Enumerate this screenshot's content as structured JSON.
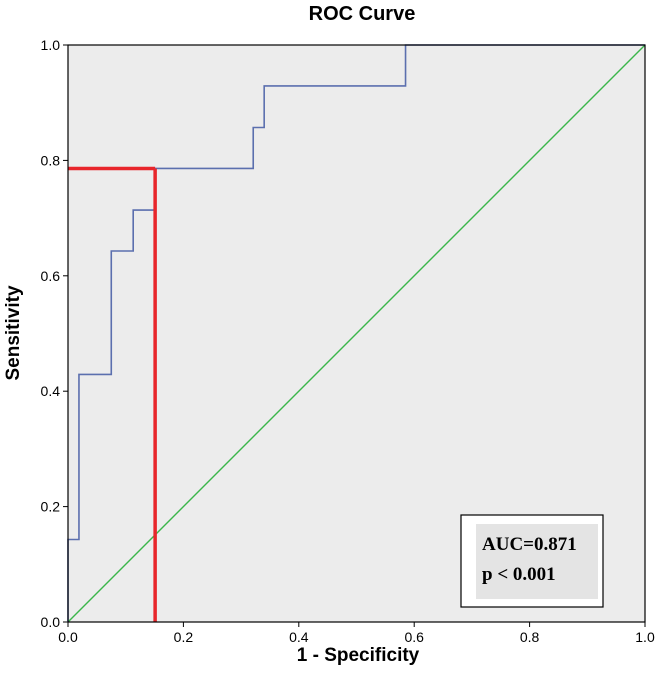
{
  "chart_data": {
    "type": "line",
    "title": "ROC Curve",
    "xlabel": "1 - Specificity",
    "ylabel": "Sensitivity",
    "xlim": [
      0,
      1
    ],
    "ylim": [
      0,
      1
    ],
    "x_ticks": [
      "0.0",
      "0.2",
      "0.4",
      "0.6",
      "0.8",
      "1.0"
    ],
    "y_ticks": [
      "0.0",
      "0.2",
      "0.4",
      "0.6",
      "0.8",
      "1.0"
    ],
    "grid": false,
    "series": [
      {
        "color": "#5b6fae",
        "points": [
          [
            0.0,
            0.0
          ],
          [
            0.0,
            0.143
          ],
          [
            0.019,
            0.143
          ],
          [
            0.019,
            0.429
          ],
          [
            0.075,
            0.429
          ],
          [
            0.075,
            0.643
          ],
          [
            0.113,
            0.643
          ],
          [
            0.113,
            0.714
          ],
          [
            0.151,
            0.714
          ],
          [
            0.151,
            0.786
          ],
          [
            0.321,
            0.786
          ],
          [
            0.321,
            0.857
          ],
          [
            0.34,
            0.857
          ],
          [
            0.34,
            0.929
          ],
          [
            0.585,
            0.929
          ],
          [
            0.585,
            1.0
          ],
          [
            1.0,
            1.0
          ]
        ]
      },
      {
        "color": "#3ab54a",
        "points": [
          [
            0,
            0
          ],
          [
            1,
            1
          ]
        ]
      }
    ],
    "cutoff": {
      "x": 0.151,
      "y": 0.786,
      "color": "#e8262b"
    },
    "annotations": [
      "AUC=0.871",
      "p < 0.001"
    ]
  },
  "colors": {
    "plot_background": "#ececec",
    "annotation_box_fill": "#e4e4e4"
  }
}
